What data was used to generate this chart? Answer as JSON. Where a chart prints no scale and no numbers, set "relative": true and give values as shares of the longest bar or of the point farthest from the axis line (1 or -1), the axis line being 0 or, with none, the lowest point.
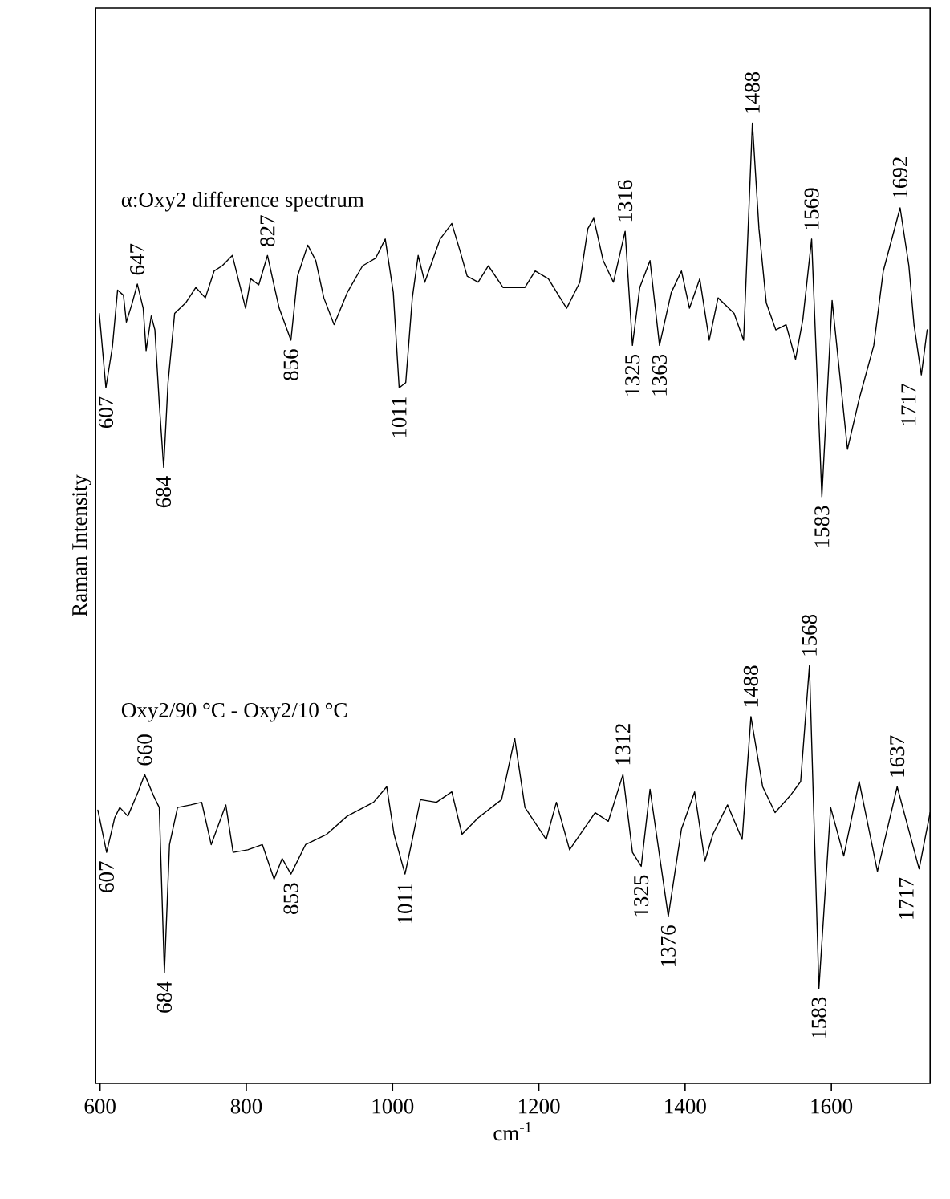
{
  "chart_data": {
    "type": "line",
    "relative": true,
    "xlabel": "cm$^{-1}$",
    "ylabel": "Raman Intensity",
    "xlim": [
      594,
      1735
    ],
    "xticks": [
      600,
      800,
      1000,
      1200,
      1400,
      1600
    ],
    "marker": "none",
    "line_style": "solid",
    "series": [
      {
        "name": "α:Oxy2 difference spectrum",
        "color": "#000000",
        "x": [
          599,
          608,
          617,
          624,
          632,
          636,
          644,
          651,
          659,
          663,
          670,
          675,
          681,
          687,
          693,
          702,
          717,
          731,
          744,
          756,
          767,
          781,
          788,
          799,
          806,
          817,
          829,
          837,
          845,
          861,
          870,
          884,
          895,
          906,
          920,
          938,
          959,
          977,
          990,
          1001,
          1009,
          1018,
          1027,
          1035,
          1044,
          1052,
          1065,
          1081,
          1092,
          1102,
          1117,
          1131,
          1151,
          1181,
          1195,
          1213,
          1238,
          1256,
          1267,
          1275,
          1288,
          1302,
          1318,
          1328,
          1338,
          1352,
          1365,
          1381,
          1395,
          1406,
          1420,
          1433,
          1445,
          1467,
          1480,
          1492,
          1501,
          1511,
          1524,
          1538,
          1551,
          1561,
          1573,
          1587,
          1601,
          1622,
          1638,
          1658,
          1671,
          1694,
          1706,
          1713,
          1723,
          1731
        ],
        "values": [
          0.78,
          0.694,
          0.742,
          0.807,
          0.801,
          0.77,
          0.792,
          0.814,
          0.786,
          0.737,
          0.777,
          0.761,
          0.676,
          0.602,
          0.7,
          0.78,
          0.792,
          0.81,
          0.798,
          0.829,
          0.835,
          0.847,
          0.823,
          0.786,
          0.82,
          0.813,
          0.847,
          0.816,
          0.786,
          0.749,
          0.823,
          0.859,
          0.841,
          0.798,
          0.767,
          0.804,
          0.835,
          0.844,
          0.866,
          0.804,
          0.694,
          0.7,
          0.798,
          0.847,
          0.816,
          0.835,
          0.866,
          0.884,
          0.853,
          0.823,
          0.816,
          0.835,
          0.81,
          0.81,
          0.829,
          0.82,
          0.786,
          0.816,
          0.878,
          0.89,
          0.841,
          0.816,
          0.875,
          0.743,
          0.81,
          0.841,
          0.743,
          0.804,
          0.829,
          0.786,
          0.82,
          0.749,
          0.798,
          0.78,
          0.749,
          1.0,
          0.878,
          0.792,
          0.761,
          0.767,
          0.727,
          0.773,
          0.866,
          0.568,
          0.795,
          0.623,
          0.681,
          0.743,
          0.829,
          0.902,
          0.835,
          0.767,
          0.709,
          0.761
        ]
      },
      {
        "name": "Oxy2/90 °C - Oxy2/10 °C",
        "color": "#000000",
        "x": [
          597,
          609,
          620,
          627,
          638,
          652,
          661,
          674,
          681,
          688,
          695,
          706,
          724,
          739,
          752,
          772,
          782,
          802,
          822,
          838,
          849,
          861,
          881,
          910,
          938,
          974,
          992,
          1002,
          1017,
          1027,
          1038,
          1060,
          1081,
          1095,
          1117,
          1149,
          1167,
          1181,
          1210,
          1224,
          1242,
          1277,
          1295,
          1315,
          1328,
          1340,
          1352,
          1377,
          1395,
          1413,
          1427,
          1438,
          1458,
          1478,
          1490,
          1506,
          1523,
          1545,
          1558,
          1570,
          1583,
          1599,
          1617,
          1638,
          1663,
          1690,
          1720,
          1735
        ],
        "values": [
          0.206,
          0.157,
          0.197,
          0.209,
          0.199,
          0.227,
          0.247,
          0.221,
          0.209,
          0.018,
          0.166,
          0.209,
          0.212,
          0.215,
          0.166,
          0.212,
          0.157,
          0.16,
          0.166,
          0.126,
          0.15,
          0.132,
          0.166,
          0.178,
          0.199,
          0.215,
          0.233,
          0.178,
          0.132,
          0.172,
          0.218,
          0.215,
          0.227,
          0.178,
          0.197,
          0.218,
          0.289,
          0.209,
          0.172,
          0.215,
          0.16,
          0.203,
          0.193,
          0.247,
          0.157,
          0.141,
          0.23,
          0.083,
          0.184,
          0.227,
          0.147,
          0.178,
          0.212,
          0.172,
          0.314,
          0.233,
          0.203,
          0.224,
          0.239,
          0.373,
          0.0,
          0.209,
          0.153,
          0.239,
          0.135,
          0.233,
          0.138,
          0.203
        ]
      }
    ],
    "annotations": [
      {
        "text": "607",
        "x": 608,
        "y": 0.694
      },
      {
        "text": "647",
        "x": 651,
        "y": 0.814
      },
      {
        "text": "684",
        "x": 687,
        "y": 0.602
      },
      {
        "text": "827",
        "x": 829,
        "y": 0.847
      },
      {
        "text": "856",
        "x": 861,
        "y": 0.749
      },
      {
        "text": "1011",
        "x": 1009,
        "y": 0.694
      },
      {
        "text": "1316",
        "x": 1318,
        "y": 0.875
      },
      {
        "text": "1325",
        "x": 1328,
        "y": 0.743
      },
      {
        "text": "1363",
        "x": 1365,
        "y": 0.743
      },
      {
        "text": "1488",
        "x": 1492,
        "y": 1.0
      },
      {
        "text": "1569",
        "x": 1573,
        "y": 0.866
      },
      {
        "text": "1583",
        "x": 1587,
        "y": 0.568
      },
      {
        "text": "1692",
        "x": 1694,
        "y": 0.902
      },
      {
        "text": "1717",
        "x": 1723,
        "y": 0.709
      },
      {
        "text": "607",
        "x": 609,
        "y": 0.157
      },
      {
        "text": "660",
        "x": 661,
        "y": 0.247
      },
      {
        "text": "684",
        "x": 688,
        "y": 0.018
      },
      {
        "text": "853",
        "x": 861,
        "y": 0.132
      },
      {
        "text": "1011",
        "x": 1017,
        "y": 0.132
      },
      {
        "text": "1312",
        "x": 1315,
        "y": 0.247
      },
      {
        "text": "1325",
        "x": 1340,
        "y": 0.141
      },
      {
        "text": "1376",
        "x": 1377,
        "y": 0.083
      },
      {
        "text": "1488",
        "x": 1490,
        "y": 0.314
      },
      {
        "text": "1568",
        "x": 1570,
        "y": 0.373
      },
      {
        "text": "1583",
        "x": 1583,
        "y": 0.0
      },
      {
        "text": "1637",
        "x": 1690,
        "y": 0.233
      },
      {
        "text": "1717",
        "x": 1720,
        "y": 0.138
      }
    ]
  }
}
